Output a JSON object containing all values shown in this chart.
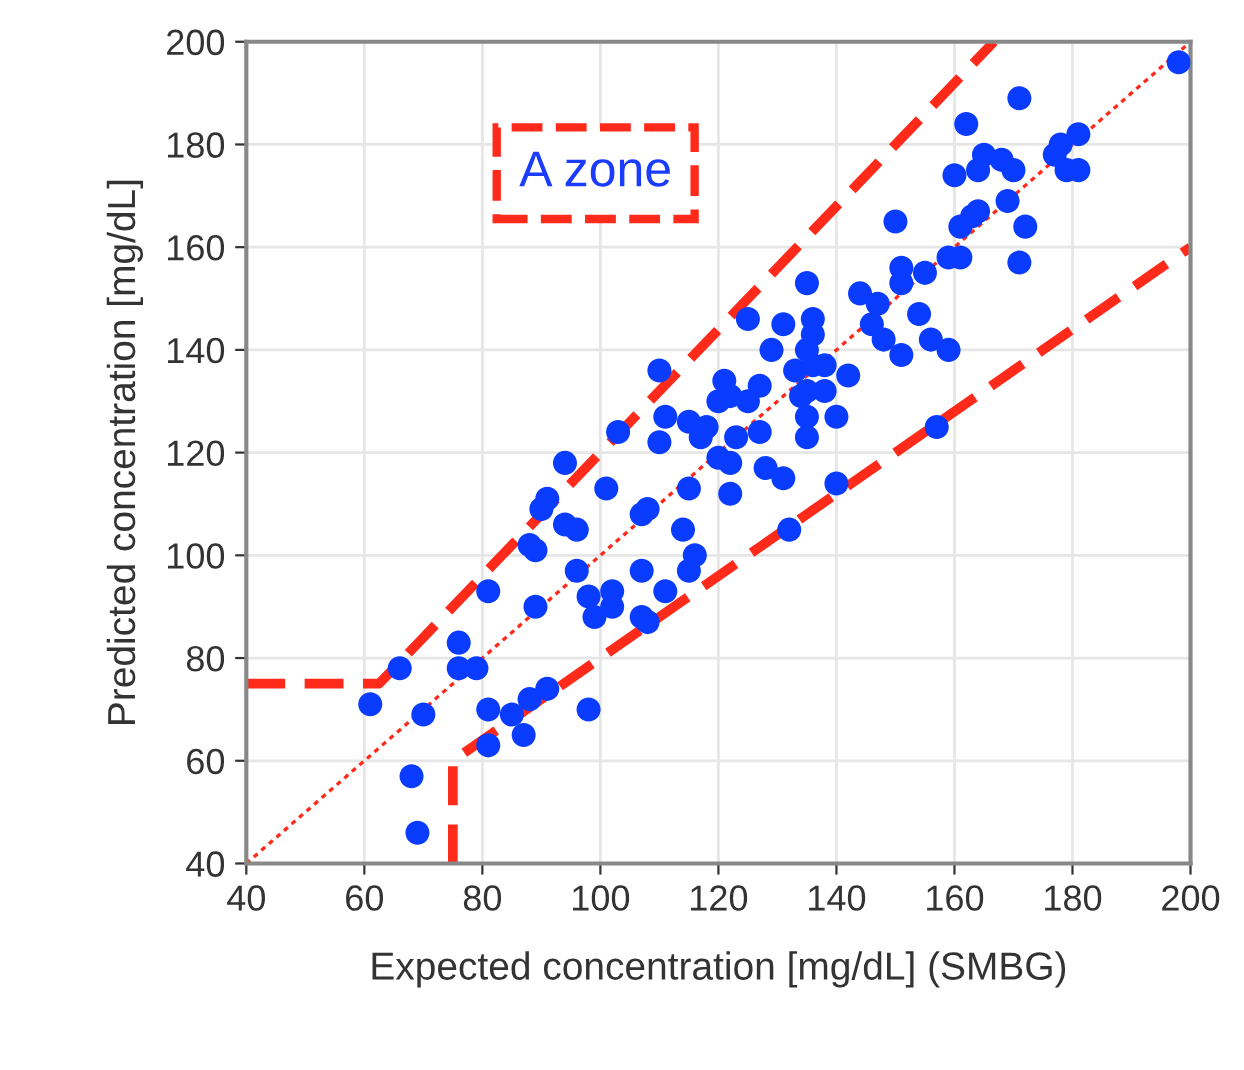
{
  "chart_data": {
    "type": "scatter",
    "xlabel": "Expected concentration [mg/dL] (SMBG)",
    "ylabel": "Predicted concentration [mg/dL]",
    "annotations": [
      "A zone"
    ],
    "xlim": [
      40,
      200
    ],
    "ylim": [
      40,
      200
    ],
    "xticks": [
      40,
      60,
      80,
      100,
      120,
      140,
      160,
      180,
      200
    ],
    "yticks": [
      40,
      60,
      80,
      100,
      120,
      140,
      160,
      180,
      200
    ],
    "grid": true,
    "series": [
      {
        "type": "line",
        "color": "#ff2a1a",
        "line_style": "dotted",
        "marker": "none",
        "x": [
          40,
          200
        ],
        "values": [
          40,
          200
        ]
      },
      {
        "type": "line",
        "color": "#ff2a1a",
        "line_style": "dashed",
        "marker": "none",
        "x": [
          40,
          62.5,
          166.7
        ],
        "values": [
          75,
          75,
          200
        ]
      },
      {
        "type": "line",
        "color": "#ff2a1a",
        "line_style": "dashed",
        "marker": "none",
        "x": [
          75,
          75,
          200
        ],
        "values": [
          40,
          60,
          160
        ]
      },
      {
        "color": "#0a3cff",
        "marker": "circle",
        "x": [
          61,
          66,
          70,
          68,
          69,
          76,
          76,
          79,
          81,
          81,
          81,
          85,
          87,
          88,
          91,
          98,
          89,
          88,
          89,
          90,
          91,
          94,
          94,
          96,
          96,
          98,
          99,
          101,
          102,
          102,
          103,
          107,
          108,
          107,
          107,
          108,
          111,
          115,
          116,
          114,
          115,
          110,
          117,
          120,
          122,
          122,
          110,
          121,
          120,
          111,
          115,
          118,
          198,
          171,
          162,
          181,
          178,
          177,
          181,
          179,
          165,
          168,
          170,
          164,
          160,
          169,
          164,
          163,
          161,
          172,
          150,
          171,
          161,
          159,
          155,
          151,
          151,
          144,
          147,
          154,
          146,
          148,
          156,
          159,
          151,
          135,
          136,
          125,
          131,
          136,
          129,
          135,
          136,
          133,
          138,
          142,
          135,
          127,
          125,
          122,
          134,
          138,
          140,
          135,
          127,
          157,
          135,
          123,
          128,
          131,
          140,
          132
        ],
        "values": [
          71,
          78,
          69,
          57,
          46,
          83,
          78,
          78,
          93,
          70,
          63,
          69,
          65,
          72,
          74,
          70,
          90,
          102,
          101,
          109,
          111,
          118,
          106,
          105,
          97,
          92,
          88,
          113,
          90,
          93,
          124,
          88,
          87,
          97,
          108,
          109,
          93,
          97,
          100,
          105,
          113,
          122,
          123,
          119,
          112,
          118,
          136,
          134,
          130,
          127,
          126,
          125,
          196,
          189,
          184,
          182,
          180,
          178,
          175,
          175,
          178,
          177,
          175,
          175,
          174,
          169,
          167,
          166,
          164,
          164,
          165,
          157,
          158,
          158,
          155,
          156,
          153,
          151,
          149,
          147,
          145,
          142,
          142,
          140,
          139,
          153,
          146,
          146,
          145,
          143,
          140,
          140,
          137,
          136,
          137,
          135,
          132,
          133,
          130,
          131,
          131,
          132,
          127,
          127,
          124,
          125,
          123,
          123,
          117,
          115,
          114,
          105
        ]
      }
    ]
  }
}
